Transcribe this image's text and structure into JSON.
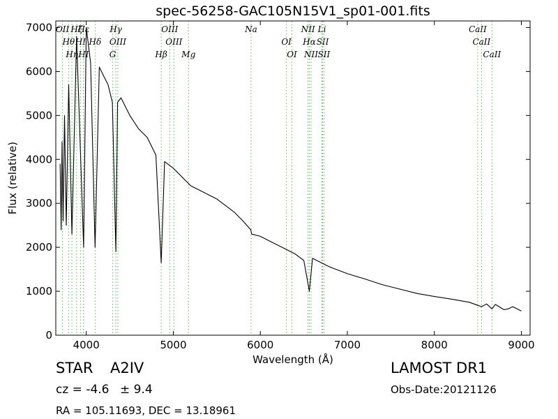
{
  "chart_data": {
    "type": "line",
    "title": "spec-56258-GAC105N15V1_sp01-001.fits",
    "xlabel": "Wavelength (Å)",
    "ylabel": "Flux (relative)",
    "xlim": [
      3650,
      9100
    ],
    "ylim": [
      0,
      7150
    ],
    "xticks": [
      4000,
      5000,
      6000,
      7000,
      8000,
      9000
    ],
    "yticks": [
      0,
      1000,
      2000,
      3000,
      4000,
      5000,
      6000,
      7000
    ],
    "series": [
      {
        "x": [
          3700,
          3712,
          3722,
          3734,
          3750,
          3770,
          3798,
          3835,
          3889,
          3970,
          4000,
          4050,
          4101,
          4150,
          4200,
          4250,
          4300,
          4340,
          4360,
          4400,
          4450,
          4500,
          4600,
          4700,
          4800,
          4861,
          4900,
          5000,
          5100,
          5200,
          5300,
          5400,
          5500,
          5600,
          5700,
          5800,
          5890,
          5900,
          6000,
          6100,
          6200,
          6300,
          6400,
          6500,
          6563,
          6600,
          6700,
          6800,
          7000,
          7200,
          7400,
          7600,
          7800,
          8000,
          8200,
          8400,
          8498,
          8542,
          8600,
          8662,
          8700,
          8800,
          8850,
          8900,
          9000
        ],
        "y": [
          3900,
          2400,
          4400,
          2600,
          5000,
          2500,
          5700,
          2300,
          6800,
          2000,
          7000,
          6200,
          2000,
          6100,
          5900,
          5700,
          5300,
          1900,
          5300,
          5400,
          5200,
          5000,
          4700,
          4500,
          4100,
          1650,
          3950,
          3800,
          3600,
          3400,
          3300,
          3200,
          3100,
          2950,
          2800,
          2600,
          2400,
          2300,
          2250,
          2150,
          2050,
          1950,
          1850,
          1700,
          1000,
          1750,
          1650,
          1550,
          1400,
          1280,
          1150,
          1050,
          950,
          880,
          820,
          750,
          680,
          650,
          710,
          600,
          700,
          580,
          600,
          650,
          550
        ]
      }
    ],
    "lines": [
      {
        "label": "OII",
        "x": 3727
      },
      {
        "label": "Hθ",
        "x": 3797
      },
      {
        "label": "Hη",
        "x": 3835
      },
      {
        "label": "Hζ",
        "x": 3889
      },
      {
        "label": "HI",
        "x": 3934
      },
      {
        "label": "HI",
        "x": 3969
      },
      {
        "label": "Hε",
        "x": 3970
      },
      {
        "label": "Hδ",
        "x": 4102
      },
      {
        "label": "G",
        "x": 4304
      },
      {
        "label": "Hγ",
        "x": 4340
      },
      {
        "label": "OIII",
        "x": 4363
      },
      {
        "label": "Hβ",
        "x": 4861
      },
      {
        "label": "OIII",
        "x": 4959
      },
      {
        "label": "OIII",
        "x": 5007
      },
      {
        "label": "Mg",
        "x": 5175
      },
      {
        "label": "Na",
        "x": 5894
      },
      {
        "label": "OI",
        "x": 6300
      },
      {
        "label": "OI",
        "x": 6363
      },
      {
        "label": "NII",
        "x": 6548
      },
      {
        "label": "Hα",
        "x": 6563
      },
      {
        "label": "NII",
        "x": 6583
      },
      {
        "label": "Li",
        "x": 6708
      },
      {
        "label": "SII",
        "x": 6716
      },
      {
        "label": "SII",
        "x": 6731
      },
      {
        "label": "CaII",
        "x": 8498
      },
      {
        "label": "CaII",
        "x": 8542
      },
      {
        "label": "CaII",
        "x": 8662
      }
    ]
  },
  "footer": {
    "class_label": "STAR",
    "subclass": "A2IV",
    "cz": "cz = -4.6",
    "cz_err": "± 9.4",
    "radec": "RA = 105.11693, DEC = 13.18961",
    "survey": "LAMOST DR1",
    "obs_date": "Obs-Date:20121126"
  },
  "colors": {
    "spectrum": "#000000",
    "line_marker": "#55bb55"
  }
}
